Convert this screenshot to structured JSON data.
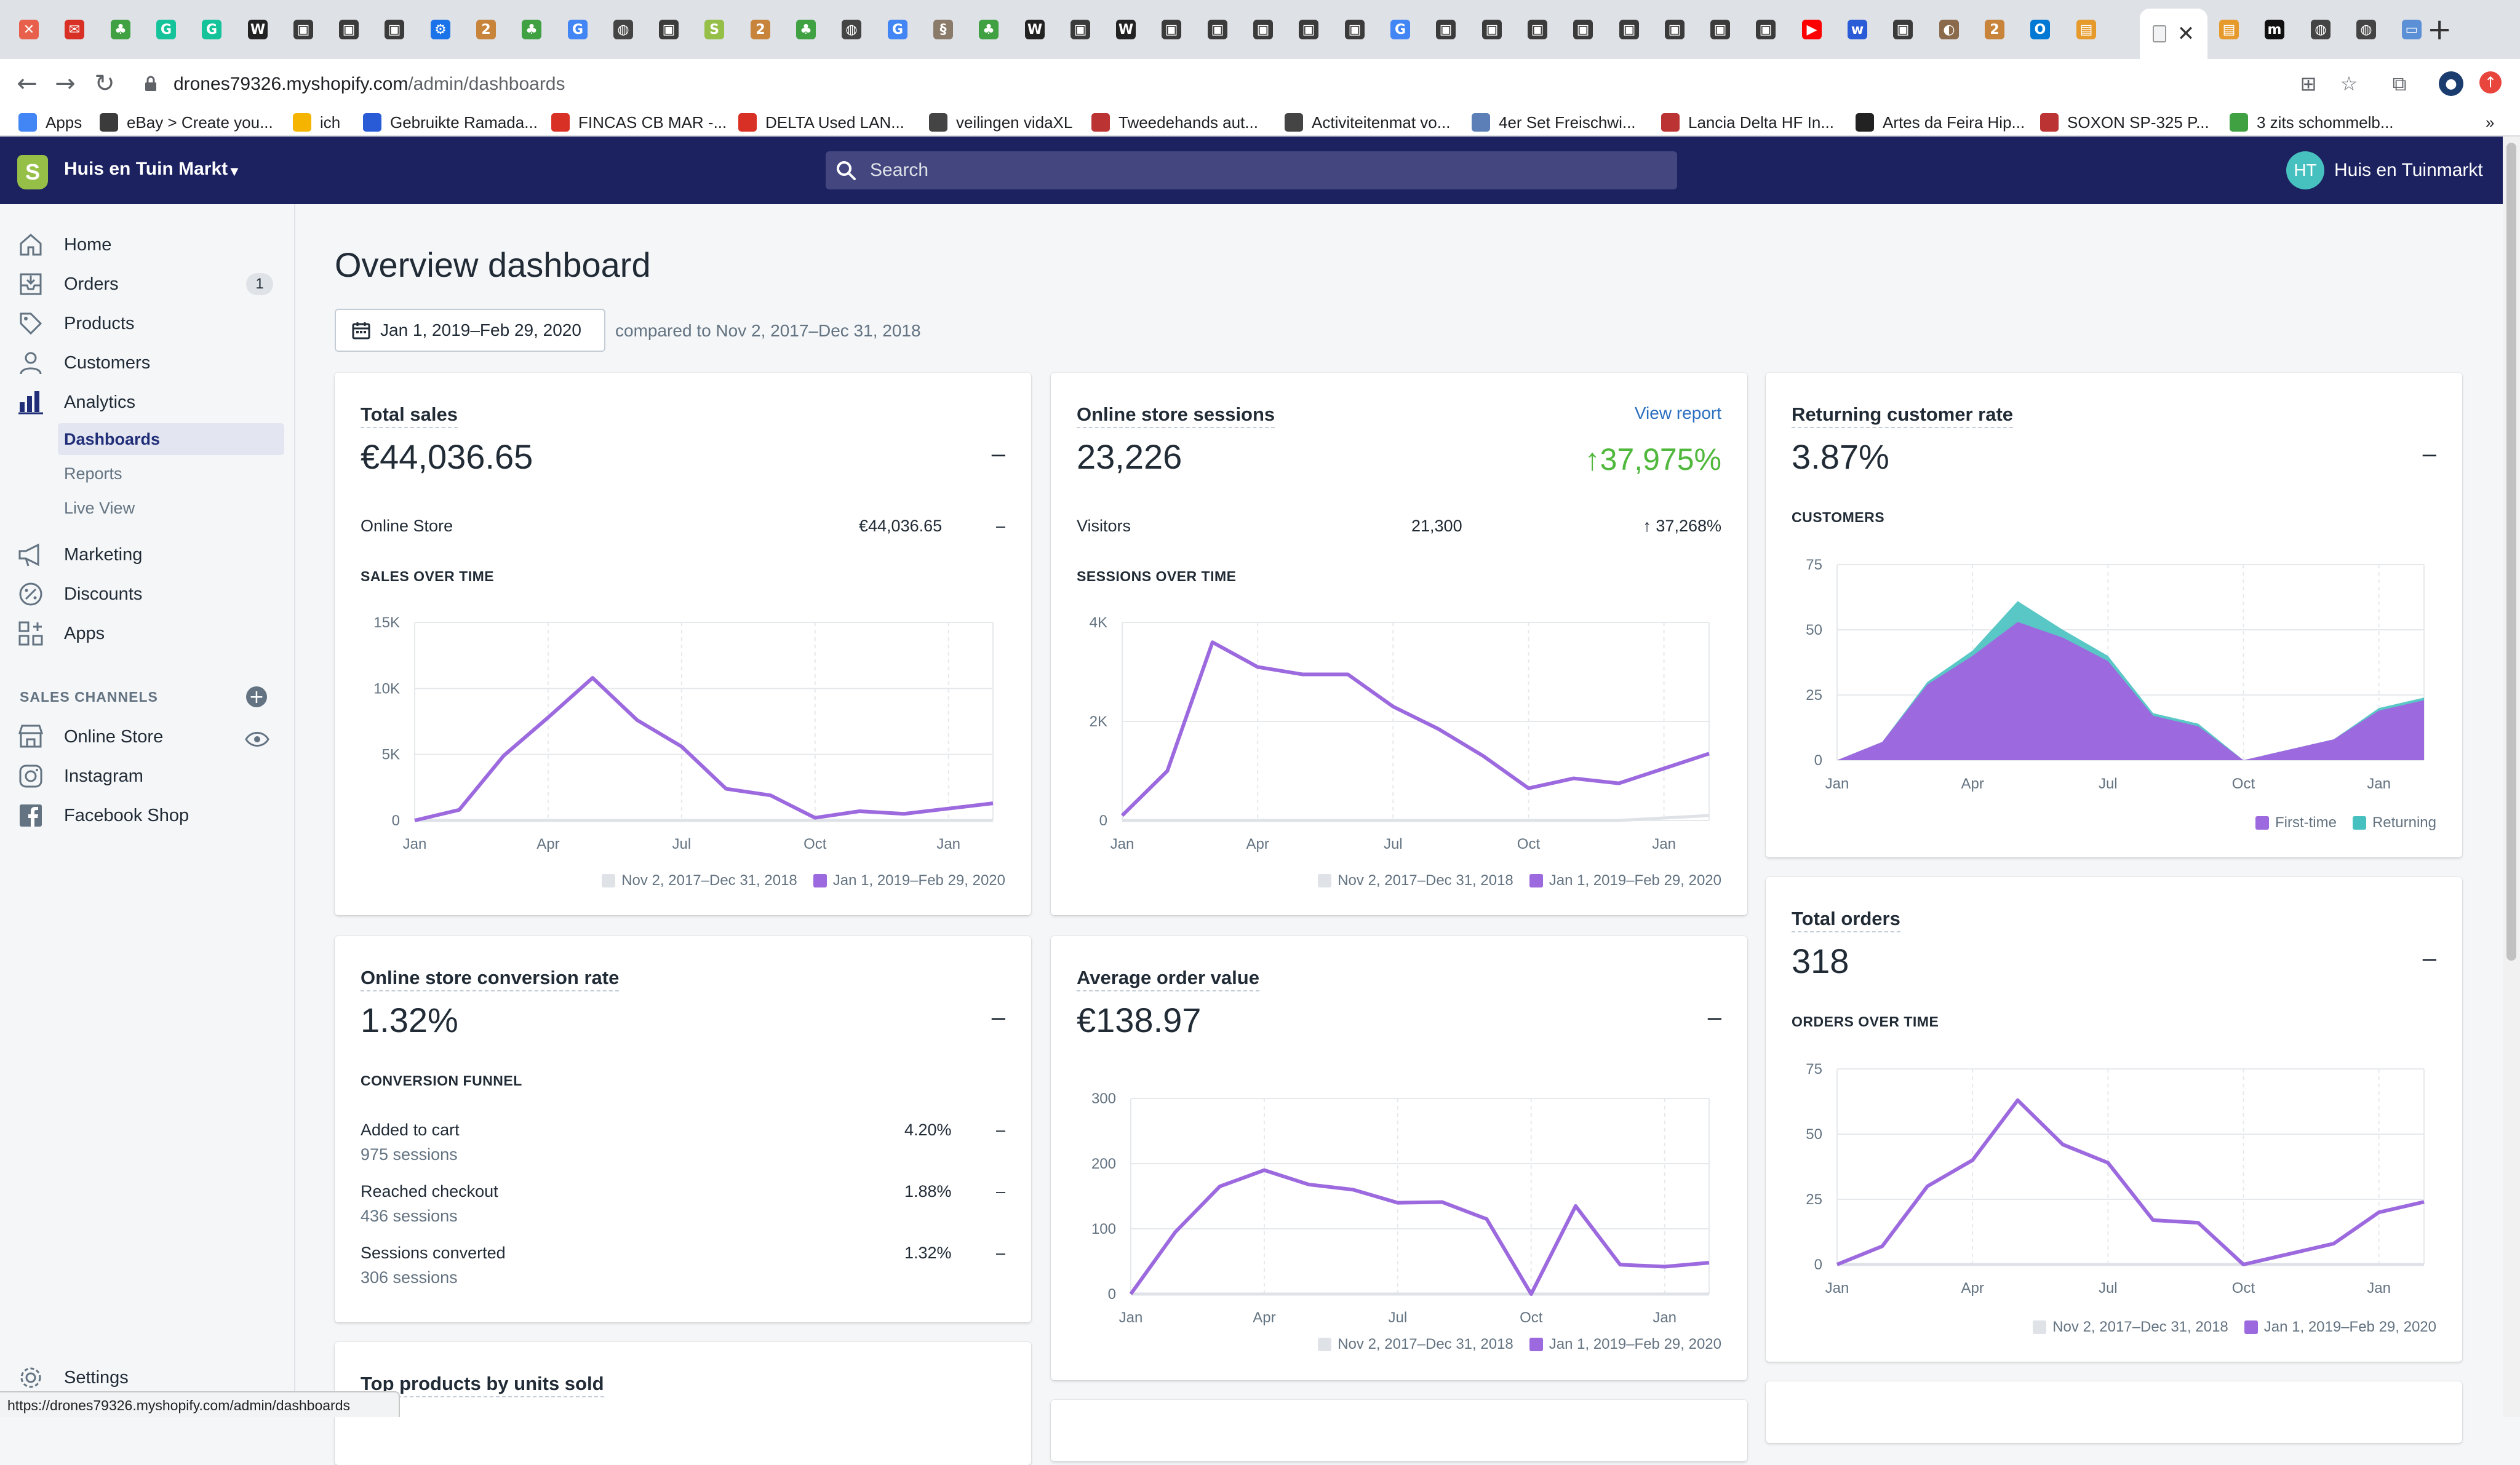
{
  "browser": {
    "tabs": [
      {
        "icon": "shopify-x-icon",
        "color": "#e8604c",
        "glyph": "✕"
      },
      {
        "icon": "mail-icon",
        "color": "#d93025",
        "glyph": "✉"
      },
      {
        "icon": "marktplaats-icon",
        "color": "#3fa142",
        "glyph": "♣"
      },
      {
        "icon": "grammarly-icon",
        "color": "#15c39a",
        "glyph": "G"
      },
      {
        "icon": "grammarly-icon",
        "color": "#15c39a",
        "glyph": "G"
      },
      {
        "icon": "wikipedia-icon",
        "color": "#222",
        "glyph": "W"
      },
      {
        "icon": "shop-icon",
        "color": "#3b3b3b",
        "glyph": "▣"
      },
      {
        "icon": "shop-icon",
        "color": "#3b3b3b",
        "glyph": "▣"
      },
      {
        "icon": "shop-icon",
        "color": "#3b3b3b",
        "glyph": "▣"
      },
      {
        "icon": "gear-icon",
        "color": "#1a73e8",
        "glyph": "⚙"
      },
      {
        "icon": "coin-icon",
        "color": "#c8843a",
        "glyph": "2"
      },
      {
        "icon": "marktplaats-icon",
        "color": "#3fa142",
        "glyph": "♣"
      },
      {
        "icon": "google-icon",
        "color": "#4285f4",
        "glyph": "G"
      },
      {
        "icon": "globe-icon",
        "color": "#444",
        "glyph": "◍"
      },
      {
        "icon": "shop-icon",
        "color": "#3b3b3b",
        "glyph": "▣"
      },
      {
        "icon": "shopify-icon",
        "color": "#95bf47",
        "glyph": "S"
      },
      {
        "icon": "coin-icon",
        "color": "#c8843a",
        "glyph": "2"
      },
      {
        "icon": "marktplaats-icon",
        "color": "#3fa142",
        "glyph": "♣"
      },
      {
        "icon": "globe-icon",
        "color": "#444",
        "glyph": "◍"
      },
      {
        "icon": "google-icon",
        "color": "#4285f4",
        "glyph": "G"
      },
      {
        "icon": "link-icon",
        "color": "#8a7a6a",
        "glyph": "§"
      },
      {
        "icon": "marktplaats-icon",
        "color": "#3fa142",
        "glyph": "♣"
      },
      {
        "icon": "wikipedia-icon",
        "color": "#222",
        "glyph": "W"
      },
      {
        "icon": "shop-icon",
        "color": "#3b3b3b",
        "glyph": "▣"
      },
      {
        "icon": "wikipedia-icon",
        "color": "#222",
        "glyph": "W"
      },
      {
        "icon": "shop-icon",
        "color": "#3b3b3b",
        "glyph": "▣"
      },
      {
        "icon": "shop-icon",
        "color": "#3b3b3b",
        "glyph": "▣"
      },
      {
        "icon": "shop-icon",
        "color": "#3b3b3b",
        "glyph": "▣"
      },
      {
        "icon": "shop-icon",
        "color": "#3b3b3b",
        "glyph": "▣"
      },
      {
        "icon": "shop-icon",
        "color": "#3b3b3b",
        "glyph": "▣"
      },
      {
        "icon": "google-icon",
        "color": "#4285f4",
        "glyph": "G"
      },
      {
        "icon": "shop-icon",
        "color": "#3b3b3b",
        "glyph": "▣"
      },
      {
        "icon": "shop-icon",
        "color": "#3b3b3b",
        "glyph": "▣"
      },
      {
        "icon": "shop-icon",
        "color": "#3b3b3b",
        "glyph": "▣"
      },
      {
        "icon": "shop-icon",
        "color": "#3b3b3b",
        "glyph": "▣"
      },
      {
        "icon": "shop-icon",
        "color": "#3b3b3b",
        "glyph": "▣"
      },
      {
        "icon": "shop-icon",
        "color": "#3b3b3b",
        "glyph": "▣"
      },
      {
        "icon": "shop-icon",
        "color": "#3b3b3b",
        "glyph": "▣"
      },
      {
        "icon": "shop-icon",
        "color": "#3b3b3b",
        "glyph": "▣"
      },
      {
        "icon": "youtube-icon",
        "color": "#ff0000",
        "glyph": "▶"
      },
      {
        "icon": "wix-icon",
        "color": "#2a5bd7",
        "glyph": "w"
      },
      {
        "icon": "shop-icon",
        "color": "#3b3b3b",
        "glyph": "▣"
      },
      {
        "icon": "toggle-icon",
        "color": "#8a6a4a",
        "glyph": "◐"
      },
      {
        "icon": "coin-icon",
        "color": "#c8843a",
        "glyph": "2"
      },
      {
        "icon": "outlook-icon",
        "color": "#0078d4",
        "glyph": "O"
      },
      {
        "icon": "card-icon",
        "color": "#e69a2c",
        "glyph": "▤"
      }
    ],
    "active_tab": {
      "icon": "page-icon",
      "close_label": "✕"
    },
    "tabs_after": [
      {
        "icon": "card-icon",
        "color": "#e69a2c",
        "glyph": "▤"
      },
      {
        "icon": "medium-icon",
        "color": "#111",
        "glyph": "m"
      },
      {
        "icon": "globe-icon",
        "color": "#444",
        "glyph": "◍"
      },
      {
        "icon": "globe-icon",
        "color": "#444",
        "glyph": "◍"
      },
      {
        "icon": "window-icon",
        "color": "#5b8fd6",
        "glyph": "▭"
      }
    ],
    "new_tab": "+",
    "url_host": "drones79326.myshopify.com",
    "url_path": "/admin/dashboards",
    "bookmarks": [
      {
        "label": "Apps",
        "color": "#4285f4"
      },
      {
        "label": "eBay > Create you...",
        "color": "#3b3b3b"
      },
      {
        "label": "ich",
        "color": "#f4b400"
      },
      {
        "label": "Gebruikte Ramada...",
        "color": "#2a5bd7"
      },
      {
        "label": "FINCAS CB MAR -...",
        "color": "#d93025"
      },
      {
        "label": "DELTA Used LAN...",
        "color": "#d93025"
      },
      {
        "label": "veilingen vidaXL",
        "color": "#444"
      },
      {
        "label": "Tweedehands aut...",
        "color": "#b33"
      },
      {
        "label": "Activiteitenmat vo...",
        "color": "#444"
      },
      {
        "label": "4er Set Freischwi...",
        "color": "#5b7fb6"
      },
      {
        "label": "Lancia Delta HF In...",
        "color": "#b33"
      },
      {
        "label": "Artes da Feira Hip...",
        "color": "#222"
      },
      {
        "label": "SOXON SP-325 P...",
        "color": "#b33"
      },
      {
        "label": "3 zits schommelb...",
        "color": "#3fa142"
      }
    ]
  },
  "topbar": {
    "store_name": "Huis en Tuin Markt",
    "search_placeholder": "Search",
    "avatar_initials": "HT",
    "user_name": "Huis en Tuinmarkt"
  },
  "sidebar": {
    "items": [
      {
        "label": "Home",
        "icon": "home-icon"
      },
      {
        "label": "Orders",
        "icon": "orders-icon",
        "badge": "1"
      },
      {
        "label": "Products",
        "icon": "tag-icon"
      },
      {
        "label": "Customers",
        "icon": "person-icon"
      },
      {
        "label": "Analytics",
        "icon": "bar-chart-icon"
      }
    ],
    "analytics_sub": [
      {
        "label": "Dashboards",
        "active": true
      },
      {
        "label": "Reports"
      },
      {
        "label": "Live View"
      }
    ],
    "items2": [
      {
        "label": "Marketing",
        "icon": "megaphone-icon"
      },
      {
        "label": "Discounts",
        "icon": "discount-icon"
      },
      {
        "label": "Apps",
        "icon": "apps-icon"
      }
    ],
    "sales_channels_heading": "SALES CHANNELS",
    "channels": [
      {
        "label": "Online Store",
        "icon": "store-icon"
      },
      {
        "label": "Instagram",
        "icon": "instagram-icon"
      },
      {
        "label": "Facebook Shop",
        "icon": "facebook-icon"
      }
    ],
    "settings_label": "Settings"
  },
  "main": {
    "title": "Overview dashboard",
    "date_range": "Jan 1, 2019–Feb 29, 2020",
    "compared": "compared to Nov 2, 2017–Dec 31, 2018",
    "legend_prev": "Nov 2, 2017–Dec 31, 2018",
    "legend_curr": "Jan 1, 2019–Feb 29, 2020",
    "colors": {
      "current": "#9c6ade",
      "previous": "#dfe3e8",
      "returning": "#47c1bf"
    },
    "total_sales": {
      "title": "Total sales",
      "value": "€44,036.65",
      "dash": "–",
      "row_label": "Online Store",
      "row_value": "€44,036.65",
      "row_dash": "–",
      "caption": "SALES OVER TIME"
    },
    "sessions": {
      "title": "Online store sessions",
      "link": "View report",
      "value": "23,226",
      "change": "↑37,975%",
      "row_label": "Visitors",
      "row_value": "21,300",
      "row_change": "↑ 37,268%",
      "caption": "SESSIONS OVER TIME"
    },
    "returning": {
      "title": "Returning customer rate",
      "value": "3.87%",
      "dash": "–",
      "caption": "CUSTOMERS",
      "legend_first": "First-time",
      "legend_returning": "Returning"
    },
    "conversion": {
      "title": "Online store conversion rate",
      "value": "1.32%",
      "dash": "–",
      "caption": "CONVERSION FUNNEL",
      "rows": [
        {
          "label": "Added to cart",
          "sub": "975 sessions",
          "value": "4.20%",
          "dash": "–"
        },
        {
          "label": "Reached checkout",
          "sub": "436 sessions",
          "value": "1.88%",
          "dash": "–"
        },
        {
          "label": "Sessions converted",
          "sub": "306 sessions",
          "value": "1.32%",
          "dash": "–"
        }
      ]
    },
    "aov": {
      "title": "Average order value",
      "value": "€138.97",
      "dash": "–"
    },
    "orders": {
      "title": "Total orders",
      "value": "318",
      "dash": "–",
      "caption": "ORDERS OVER TIME"
    },
    "top_products": {
      "title": "Top products by units sold"
    }
  },
  "chart_data": [
    {
      "type": "line",
      "name": "sales-over-time",
      "x": [
        "Jan",
        "Feb",
        "Mar",
        "Apr",
        "May",
        "Jun",
        "Jul",
        "Aug",
        "Sep",
        "Oct",
        "Nov",
        "Dec",
        "Jan",
        "Feb"
      ],
      "xticks": [
        "Jan",
        "Apr",
        "Jul",
        "Oct",
        "Jan"
      ],
      "yticks": [
        "0",
        "5K",
        "10K",
        "15K"
      ],
      "ylim": [
        0,
        15000
      ],
      "series": [
        {
          "name": "Jan 1, 2019–Feb 29, 2020",
          "values": [
            0,
            800,
            4900,
            7800,
            10800,
            7600,
            5600,
            2400,
            1900,
            200,
            700,
            500,
            900,
            1300
          ]
        },
        {
          "name": "Nov 2, 2017–Dec 31, 2018",
          "values": [
            0,
            0,
            0,
            0,
            0,
            0,
            0,
            0,
            0,
            0,
            0,
            0,
            0,
            0
          ]
        }
      ]
    },
    {
      "type": "line",
      "name": "sessions-over-time",
      "x": [
        "Jan",
        "Feb",
        "Mar",
        "Apr",
        "May",
        "Jun",
        "Jul",
        "Aug",
        "Sep",
        "Oct",
        "Nov",
        "Dec",
        "Jan",
        "Feb"
      ],
      "xticks": [
        "Jan",
        "Apr",
        "Jul",
        "Oct",
        "Jan"
      ],
      "yticks": [
        "0",
        "2K",
        "4K"
      ],
      "ylim": [
        0,
        4000
      ],
      "series": [
        {
          "name": "Jan 1, 2019–Feb 29, 2020",
          "values": [
            100,
            1000,
            3600,
            3100,
            2950,
            2950,
            2300,
            1850,
            1300,
            650,
            850,
            750,
            1050,
            1350
          ]
        },
        {
          "name": "Nov 2, 2017–Dec 31, 2018",
          "values": [
            0,
            0,
            0,
            0,
            0,
            0,
            0,
            0,
            0,
            0,
            0,
            0,
            50,
            100
          ]
        }
      ]
    },
    {
      "type": "area",
      "name": "customers",
      "x": [
        "Jan",
        "Feb",
        "Mar",
        "Apr",
        "May",
        "Jun",
        "Jul",
        "Aug",
        "Sep",
        "Oct",
        "Nov",
        "Dec",
        "Jan",
        "Feb"
      ],
      "xticks": [
        "Jan",
        "Apr",
        "Jul",
        "Oct",
        "Jan"
      ],
      "yticks": [
        "0",
        "25",
        "50",
        "75"
      ],
      "ylim": [
        0,
        75
      ],
      "series": [
        {
          "name": "First-time",
          "values": [
            0,
            7,
            29,
            40,
            53,
            47,
            38,
            17,
            13,
            0,
            4,
            8,
            19,
            23
          ]
        },
        {
          "name": "Returning",
          "values": [
            0,
            0,
            1,
            2,
            8,
            3,
            2,
            1,
            1,
            0,
            0,
            0,
            1,
            1
          ]
        }
      ]
    },
    {
      "type": "line",
      "name": "average-order-value",
      "x": [
        "Jan",
        "Feb",
        "Mar",
        "Apr",
        "May",
        "Jun",
        "Jul",
        "Aug",
        "Sep",
        "Oct",
        "Nov",
        "Dec",
        "Jan",
        "Feb"
      ],
      "xticks": [
        "Jan",
        "Apr",
        "Jul",
        "Oct",
        "Jan"
      ],
      "yticks": [
        "0",
        "100",
        "200",
        "300"
      ],
      "ylim": [
        0,
        300
      ],
      "series": [
        {
          "name": "Jan 1, 2019–Feb 29, 2020",
          "values": [
            0,
            95,
            165,
            190,
            168,
            160,
            140,
            141,
            115,
            0,
            135,
            45,
            42,
            48
          ]
        },
        {
          "name": "Nov 2, 2017–Dec 31, 2018",
          "values": [
            0,
            0,
            0,
            0,
            0,
            0,
            0,
            0,
            0,
            0,
            0,
            0,
            0,
            0
          ]
        }
      ]
    },
    {
      "type": "line",
      "name": "orders-over-time",
      "x": [
        "Jan",
        "Feb",
        "Mar",
        "Apr",
        "May",
        "Jun",
        "Jul",
        "Aug",
        "Sep",
        "Oct",
        "Nov",
        "Dec",
        "Jan",
        "Feb"
      ],
      "xticks": [
        "Jan",
        "Apr",
        "Jul",
        "Oct",
        "Jan"
      ],
      "yticks": [
        "0",
        "25",
        "50",
        "75"
      ],
      "ylim": [
        0,
        75
      ],
      "series": [
        {
          "name": "Jan 1, 2019–Feb 29, 2020",
          "values": [
            0,
            7,
            30,
            40,
            63,
            46,
            39,
            17,
            16,
            0,
            4,
            8,
            20,
            24
          ]
        },
        {
          "name": "Nov 2, 2017–Dec 31, 2018",
          "values": [
            0,
            0,
            0,
            0,
            0,
            0,
            0,
            0,
            0,
            0,
            0,
            0,
            0,
            0
          ]
        }
      ]
    }
  ],
  "status_url": "https://drones79326.myshopify.com/admin/dashboards"
}
